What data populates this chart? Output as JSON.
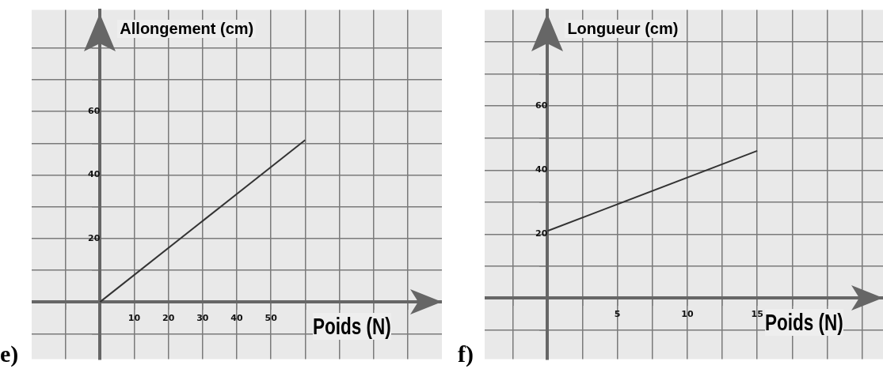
{
  "chart_data": [
    {
      "type": "line",
      "title": "e)",
      "xlabel": "Poids (N)",
      "ylabel": "Allongement (cm)",
      "x": [
        0,
        60
      ],
      "marker": "none",
      "grid": true,
      "series": [
        {
          "values": [
            0,
            51
          ],
          "color": "#333333"
        }
      ],
      "xlim": [
        -20,
        100
      ],
      "ylim": [
        -18,
        92
      ],
      "xticks": [
        {
          "value": -10,
          "label": null
        },
        {
          "value": 0,
          "label": null
        },
        10,
        20,
        30,
        40,
        50,
        {
          "value": 60,
          "label": null
        },
        {
          "value": 70,
          "label": null
        },
        {
          "value": 80,
          "label": null
        },
        {
          "value": 90,
          "label": null
        }
      ],
      "yticks": [
        {
          "value": -10,
          "label": null
        },
        {
          "value": 10,
          "label": null
        },
        20,
        {
          "value": 30,
          "label": null
        },
        40,
        {
          "value": 50,
          "label": null
        },
        60,
        {
          "value": 70,
          "label": null
        },
        {
          "value": 80,
          "label": null
        }
      ]
    },
    {
      "type": "line",
      "title": "f)",
      "xlabel": "Poids (N)",
      "ylabel": "Longueur (cm)",
      "x": [
        0,
        15
      ],
      "marker": "none",
      "grid": true,
      "series": [
        {
          "values": [
            21,
            46
          ],
          "color": "#333333"
        }
      ],
      "xlim": [
        -4.5,
        24
      ],
      "ylim": [
        -19,
        90
      ],
      "xticks": [
        {
          "value": -2.5,
          "label": null
        },
        {
          "value": 0,
          "label": null
        },
        {
          "value": 2.5,
          "label": null
        },
        5,
        {
          "value": 7.5,
          "label": null
        },
        10,
        {
          "value": 12.5,
          "label": null
        },
        15,
        {
          "value": 17.5,
          "label": null
        },
        {
          "value": 20,
          "label": null
        },
        {
          "value": 22.5,
          "label": null
        }
      ],
      "yticks": [
        {
          "value": -10,
          "label": null
        },
        {
          "value": 10,
          "label": null
        },
        20,
        {
          "value": 30,
          "label": null
        },
        40,
        {
          "value": 50,
          "label": null
        },
        60,
        {
          "value": 70,
          "label": null
        },
        {
          "value": 80,
          "label": null
        }
      ]
    }
  ]
}
